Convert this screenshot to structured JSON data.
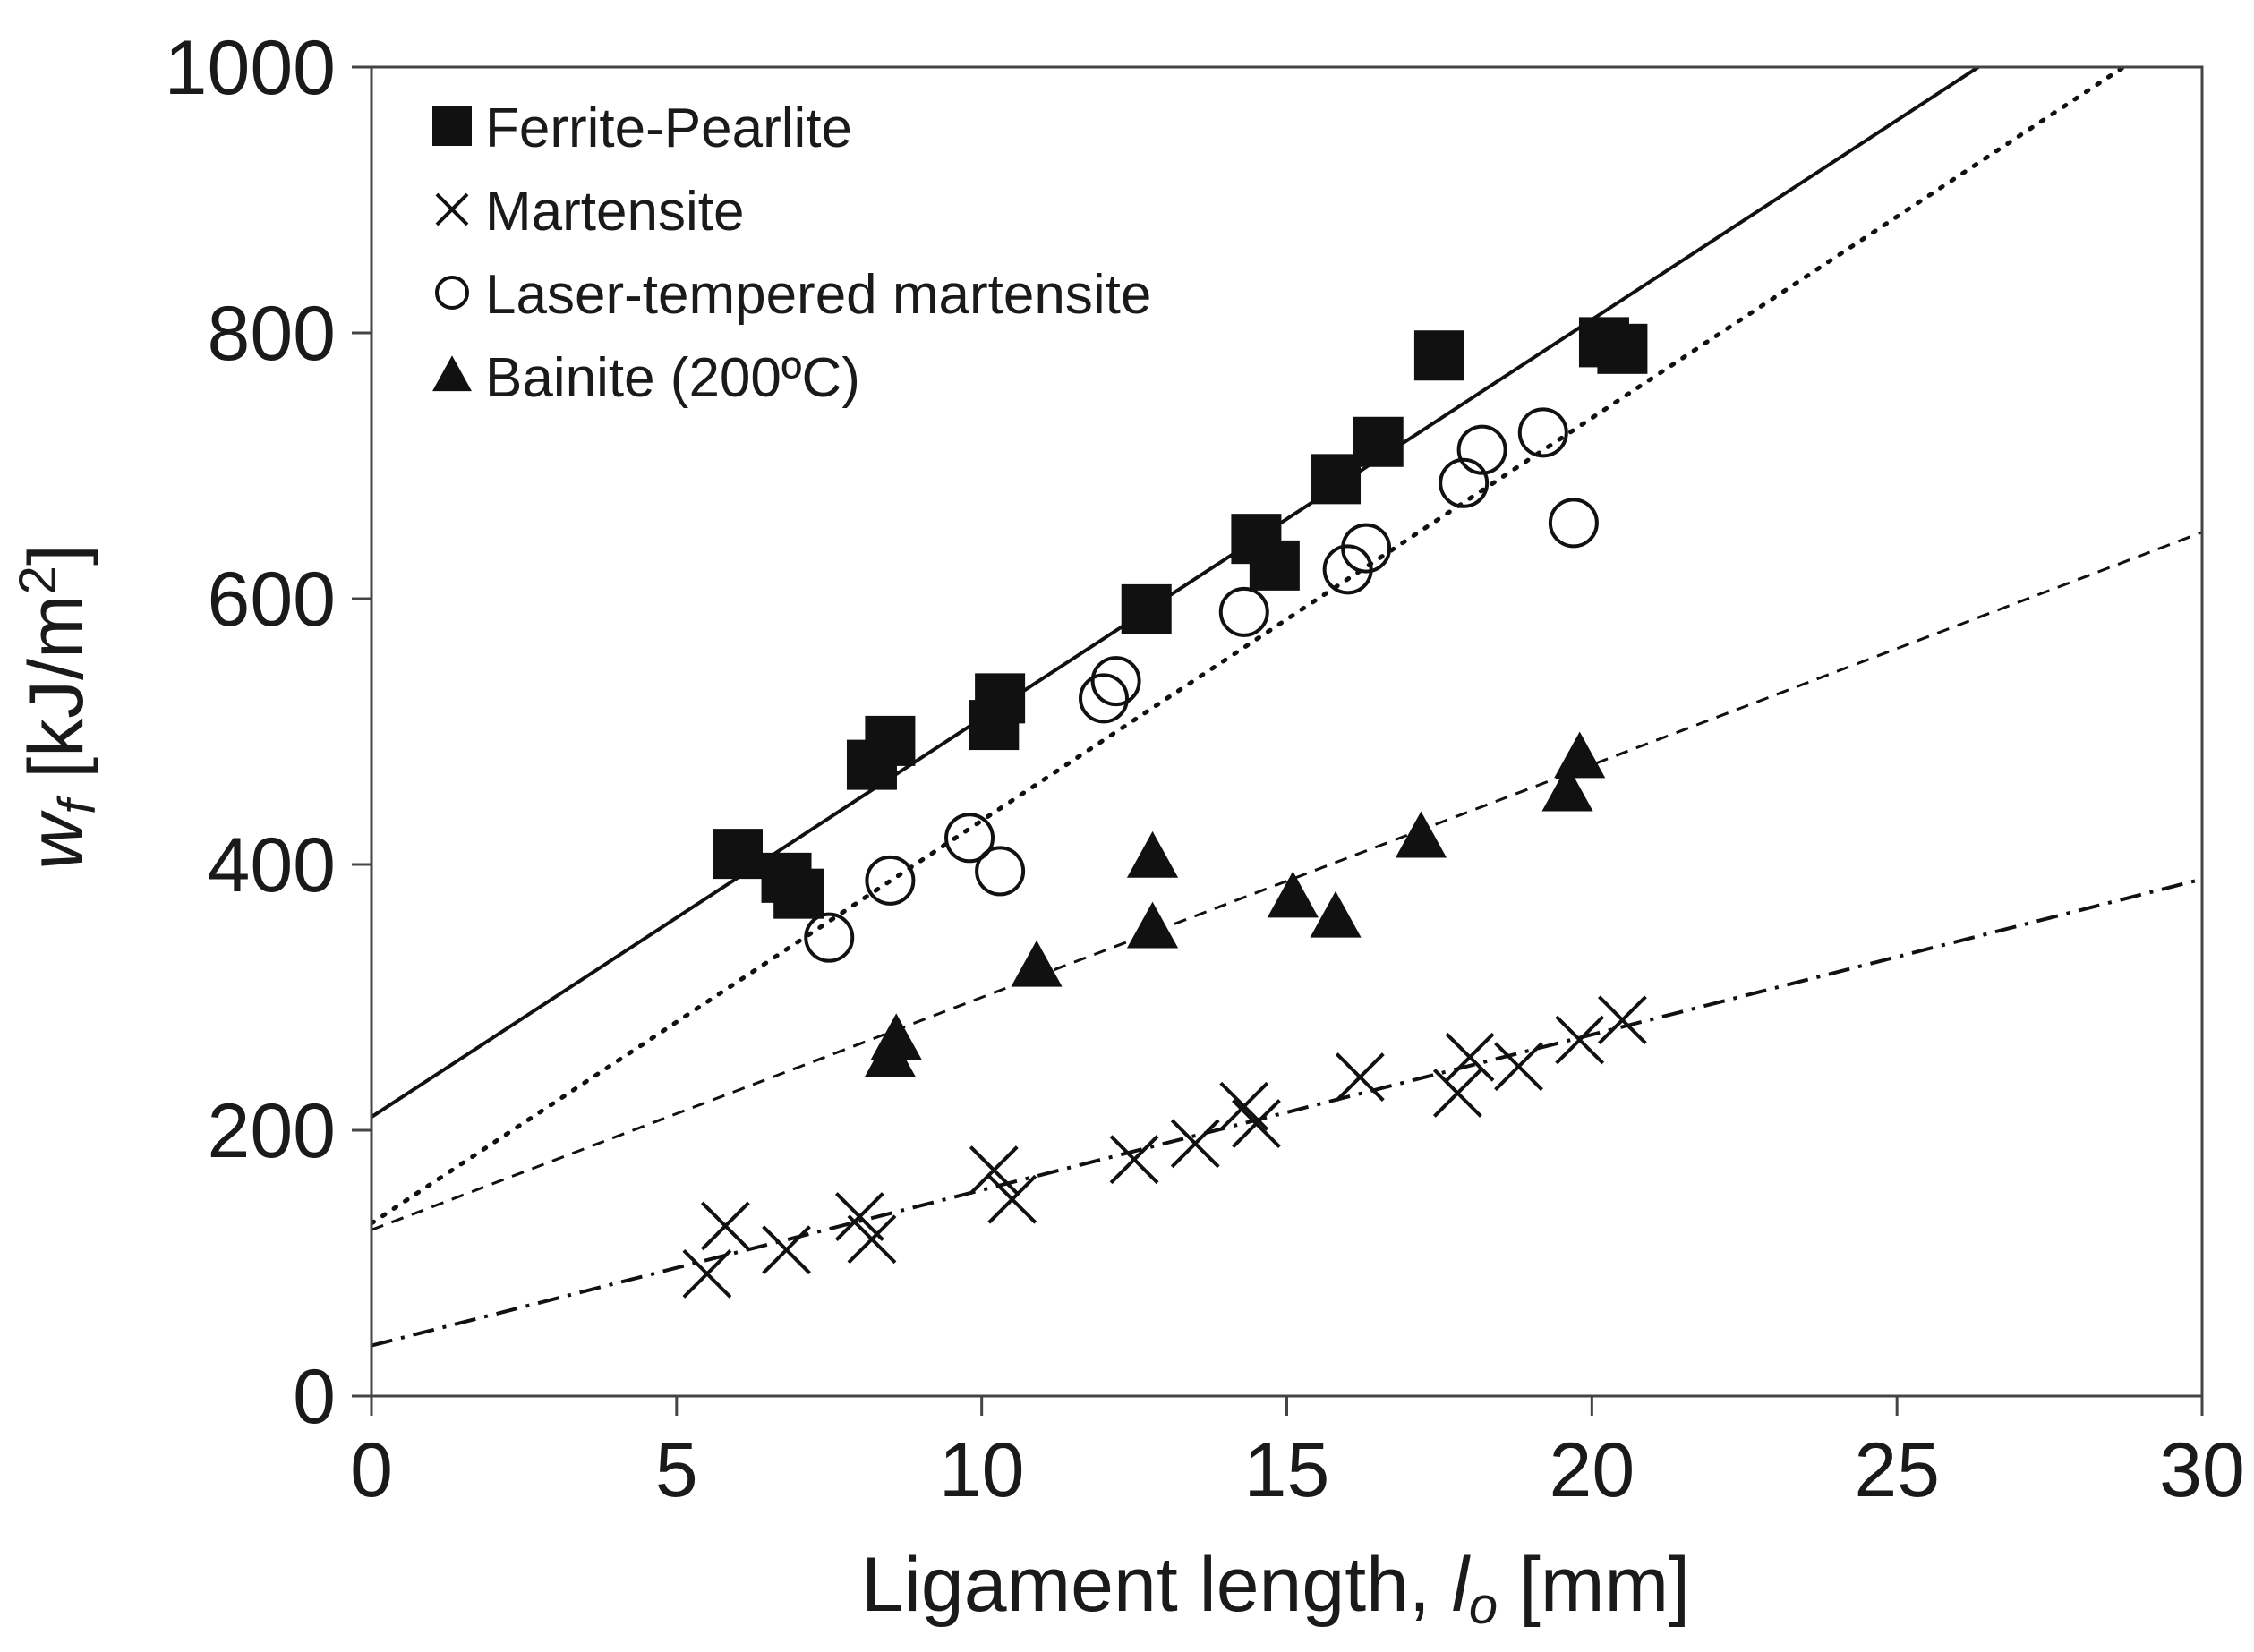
{
  "chart_data": {
    "type": "scatter",
    "title": "",
    "xlabel": {
      "prefix": "Ligament length, ",
      "symbol": "l",
      "subscript": "o",
      "suffix": " [mm]"
    },
    "ylabel": {
      "symbol": "w",
      "subscript": "f",
      "prefix_unit": " [kJ/m",
      "sup": "2",
      "suffix": "]"
    },
    "xlim": [
      0,
      30
    ],
    "ylim": [
      0,
      1000
    ],
    "xticks": [
      "0",
      "5",
      "10",
      "15",
      "20",
      "25",
      "30"
    ],
    "yticks": [
      "0",
      "200",
      "400",
      "600",
      "800",
      "1000"
    ],
    "legend_position": "top-left",
    "series": [
      {
        "name": "Ferrite-Pearlite",
        "marker": "square",
        "line_style": "solid",
        "fit": {
          "intercept": 210,
          "slope": 30
        },
        "points": [
          [
            6.0,
            408
          ],
          [
            6.8,
            390
          ],
          [
            7.0,
            378
          ],
          [
            8.2,
            475
          ],
          [
            8.5,
            493
          ],
          [
            10.2,
            505
          ],
          [
            10.3,
            525
          ],
          [
            12.7,
            592
          ],
          [
            14.5,
            645
          ],
          [
            14.8,
            625
          ],
          [
            15.8,
            690
          ],
          [
            16.5,
            718
          ],
          [
            17.5,
            783
          ],
          [
            20.2,
            793
          ],
          [
            20.5,
            788
          ]
        ]
      },
      {
        "name": "Martensite",
        "marker": "cross",
        "line_style": "dashdot",
        "fit": {
          "intercept": 38,
          "slope": 11.7
        },
        "points": [
          [
            5.5,
            92
          ],
          [
            5.8,
            128
          ],
          [
            6.8,
            110
          ],
          [
            8.0,
            135
          ],
          [
            8.2,
            118
          ],
          [
            10.2,
            170
          ],
          [
            10.5,
            148
          ],
          [
            12.5,
            178
          ],
          [
            13.5,
            190
          ],
          [
            14.3,
            218
          ],
          [
            14.5,
            205
          ],
          [
            16.2,
            240
          ],
          [
            17.8,
            228
          ],
          [
            18.0,
            255
          ],
          [
            18.8,
            248
          ],
          [
            19.8,
            268
          ],
          [
            20.5,
            283
          ]
        ]
      },
      {
        "name": "Laser-tempered martensite",
        "marker": "circle",
        "line_style": "dotted",
        "fit": {
          "intercept": 130,
          "slope": 30.3
        },
        "points": [
          [
            7.5,
            345
          ],
          [
            8.5,
            388
          ],
          [
            9.8,
            420
          ],
          [
            10.3,
            395
          ],
          [
            12.0,
            525
          ],
          [
            12.2,
            538
          ],
          [
            14.3,
            590
          ],
          [
            16.0,
            622
          ],
          [
            16.3,
            638
          ],
          [
            17.9,
            687
          ],
          [
            18.2,
            712
          ],
          [
            19.2,
            725
          ],
          [
            19.7,
            657
          ]
        ]
      },
      {
        "name": "Bainite (200ºC)",
        "marker": "triangle",
        "line_style": "dashed",
        "fit": {
          "intercept": 125,
          "slope": 17.5
        },
        "points": [
          [
            8.5,
            255
          ],
          [
            8.6,
            268
          ],
          [
            10.9,
            323
          ],
          [
            12.8,
            352
          ],
          [
            12.8,
            405
          ],
          [
            15.1,
            375
          ],
          [
            15.8,
            360
          ],
          [
            17.2,
            420
          ],
          [
            19.6,
            455
          ],
          [
            19.8,
            480
          ]
        ]
      }
    ]
  }
}
